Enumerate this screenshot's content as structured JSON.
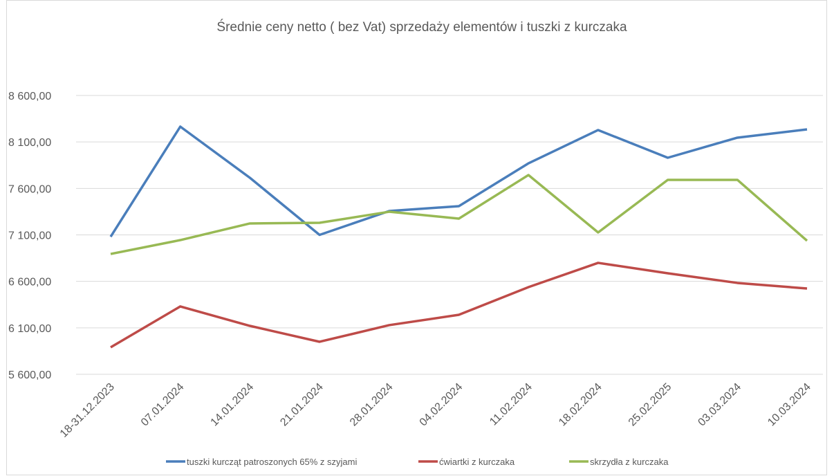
{
  "chart_data": {
    "type": "line",
    "title": "Średnie ceny netto ( bez Vat) sprzedaży elementów i tuszki z kurczaka",
    "categories": [
      "18-31.12.2023",
      "07.01.2024",
      "14.01.2024",
      "21.01.2024",
      "28.01.2024",
      "04.02.2024",
      "11.02.2024",
      "18.02.2024",
      "25.02.2025",
      "03.03.2024",
      "10.03.2024"
    ],
    "series": [
      {
        "name": "tuszki kurcząt patroszonych 65% z szyjami",
        "color": "#4a7ebb",
        "values": [
          7080,
          8265,
          7714,
          7100,
          7357,
          7409,
          7870,
          8228,
          7930,
          8146,
          8235
        ]
      },
      {
        "name": "ćwiartki z kurczaka",
        "color": "#be4b48",
        "values": [
          5890,
          6330,
          6121,
          5950,
          6129,
          6240,
          6538,
          6799,
          6687,
          6583,
          6523
        ]
      },
      {
        "name": "skrzydła z kurczaka",
        "color": "#98b954",
        "values": [
          6895,
          7044,
          7223,
          7230,
          7349,
          7275,
          7744,
          7126,
          7692,
          7692,
          7037
        ]
      }
    ],
    "ylim": [
      5600,
      8600
    ],
    "yticks": [
      {
        "value": 5600,
        "label": "5 600,00"
      },
      {
        "value": 6100,
        "label": "6 100,00"
      },
      {
        "value": 6600,
        "label": "6 600,00"
      },
      {
        "value": 7100,
        "label": "7 100,00"
      },
      {
        "value": 7600,
        "label": "7 600,00"
      },
      {
        "value": 8100,
        "label": "8 100,00"
      },
      {
        "value": 8600,
        "label": "8 600,00"
      }
    ],
    "grid": true,
    "legend": "bottom"
  }
}
